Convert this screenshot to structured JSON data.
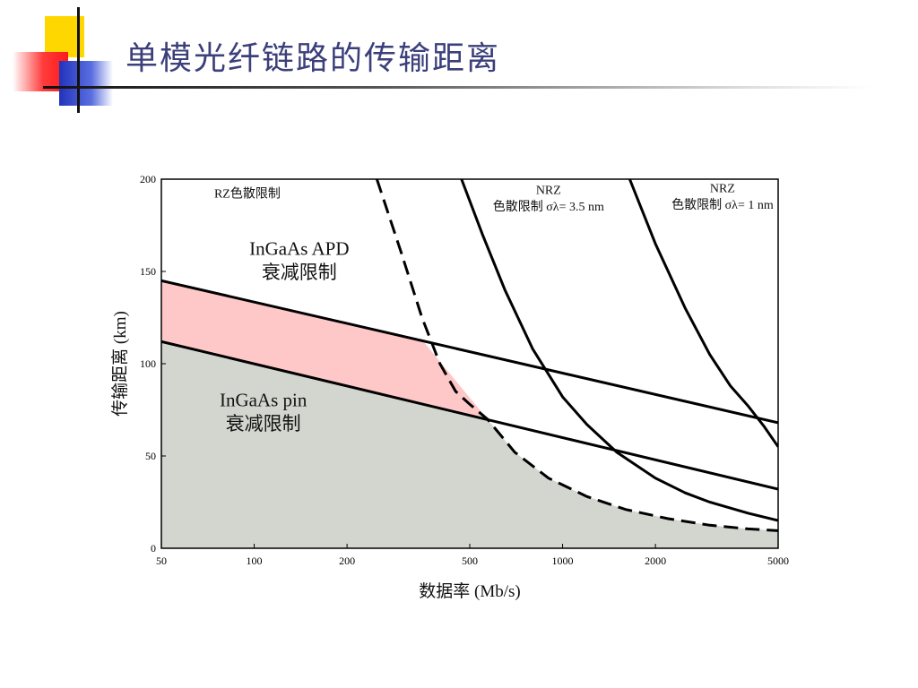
{
  "slide": {
    "title": "单模光纤链路的传输距离",
    "colors": {
      "title": "#3b3f7a",
      "deco_yellow": "#ffd700",
      "deco_red": "#ff3333",
      "deco_blue": "#3344cc"
    }
  },
  "chart_data": {
    "type": "area",
    "x_scale": "log",
    "xlim": [
      50,
      5000
    ],
    "ylim": [
      0,
      200
    ],
    "xlabel": "数据率 (Mb/s)",
    "ylabel": "传输距离 (km)",
    "x_ticks": [
      50,
      100,
      200,
      500,
      1000,
      2000,
      5000
    ],
    "y_ticks": [
      0,
      50,
      100,
      150,
      200
    ],
    "grid": false,
    "series": [
      {
        "name": "InGaAs APD 衰减限制",
        "style": "solid",
        "color": "#000000",
        "points": [
          [
            50,
            145
          ],
          [
            5000,
            68
          ]
        ]
      },
      {
        "name": "InGaAs pin 衰减限制",
        "style": "solid",
        "color": "#000000",
        "points": [
          [
            50,
            112
          ],
          [
            5000,
            32
          ]
        ]
      },
      {
        "name": "RZ色散限制",
        "style": "dashed",
        "color": "#000000",
        "points": [
          [
            250,
            200
          ],
          [
            300,
            160
          ],
          [
            350,
            125
          ],
          [
            400,
            100
          ],
          [
            450,
            85
          ],
          [
            500,
            78
          ],
          [
            570,
            70
          ],
          [
            700,
            52
          ],
          [
            900,
            38
          ],
          [
            1200,
            28
          ],
          [
            1600,
            21
          ],
          [
            2200,
            16
          ],
          [
            3000,
            12.5
          ],
          [
            4000,
            10.5
          ],
          [
            5000,
            9.5
          ]
        ]
      },
      {
        "name": "NRZ 色散限制 σλ= 3.5 nm",
        "style": "solid",
        "color": "#000000",
        "points": [
          [
            470,
            200
          ],
          [
            550,
            170
          ],
          [
            650,
            140
          ],
          [
            800,
            108
          ],
          [
            1000,
            82
          ],
          [
            1200,
            67
          ],
          [
            1500,
            52
          ],
          [
            2000,
            38
          ],
          [
            2500,
            30
          ],
          [
            3000,
            25
          ],
          [
            4000,
            19
          ],
          [
            5000,
            15
          ]
        ]
      },
      {
        "name": "NRZ 色散限制 σλ= 1 nm",
        "style": "solid",
        "color": "#000000",
        "points": [
          [
            1650,
            200
          ],
          [
            2000,
            165
          ],
          [
            2500,
            130
          ],
          [
            3000,
            105
          ],
          [
            3500,
            88
          ],
          [
            4000,
            77
          ],
          [
            4500,
            66
          ],
          [
            5000,
            55
          ]
        ]
      }
    ],
    "regions": [
      {
        "name": "APD",
        "color": "#ffc8c8",
        "points": [
          [
            50,
            145
          ],
          [
            350,
            113
          ],
          [
            570,
            70
          ],
          [
            50,
            112
          ]
        ]
      },
      {
        "name": "pin",
        "color": "#d3d6cf",
        "points": [
          [
            50,
            112
          ],
          [
            570,
            70
          ],
          [
            700,
            52
          ],
          [
            900,
            38
          ],
          [
            1200,
            28
          ],
          [
            1600,
            21
          ],
          [
            2200,
            16
          ],
          [
            3000,
            12.5
          ],
          [
            4000,
            10.5
          ],
          [
            5000,
            9.5
          ],
          [
            5000,
            0
          ],
          [
            50,
            0
          ]
        ]
      }
    ],
    "annotations": [
      {
        "text": "RZ色散限制",
        "x": 95,
        "y": 190
      },
      {
        "text": "NRZ",
        "x": 900,
        "y": 192
      },
      {
        "text": "色散限制 σλ= 3.5 nm",
        "x": 900,
        "y": 183
      },
      {
        "text": "NRZ",
        "x": 3300,
        "y": 193
      },
      {
        "text": "色散限制 σλ= 1 nm",
        "x": 3300,
        "y": 184
      },
      {
        "text": "InGaAs APD",
        "x": 140,
        "y": 159
      },
      {
        "text": "衰减限制",
        "x": 140,
        "y": 146
      },
      {
        "text": "InGaAs pin",
        "x": 107,
        "y": 77
      },
      {
        "text": "衰减限制",
        "x": 107,
        "y": 64
      }
    ]
  }
}
